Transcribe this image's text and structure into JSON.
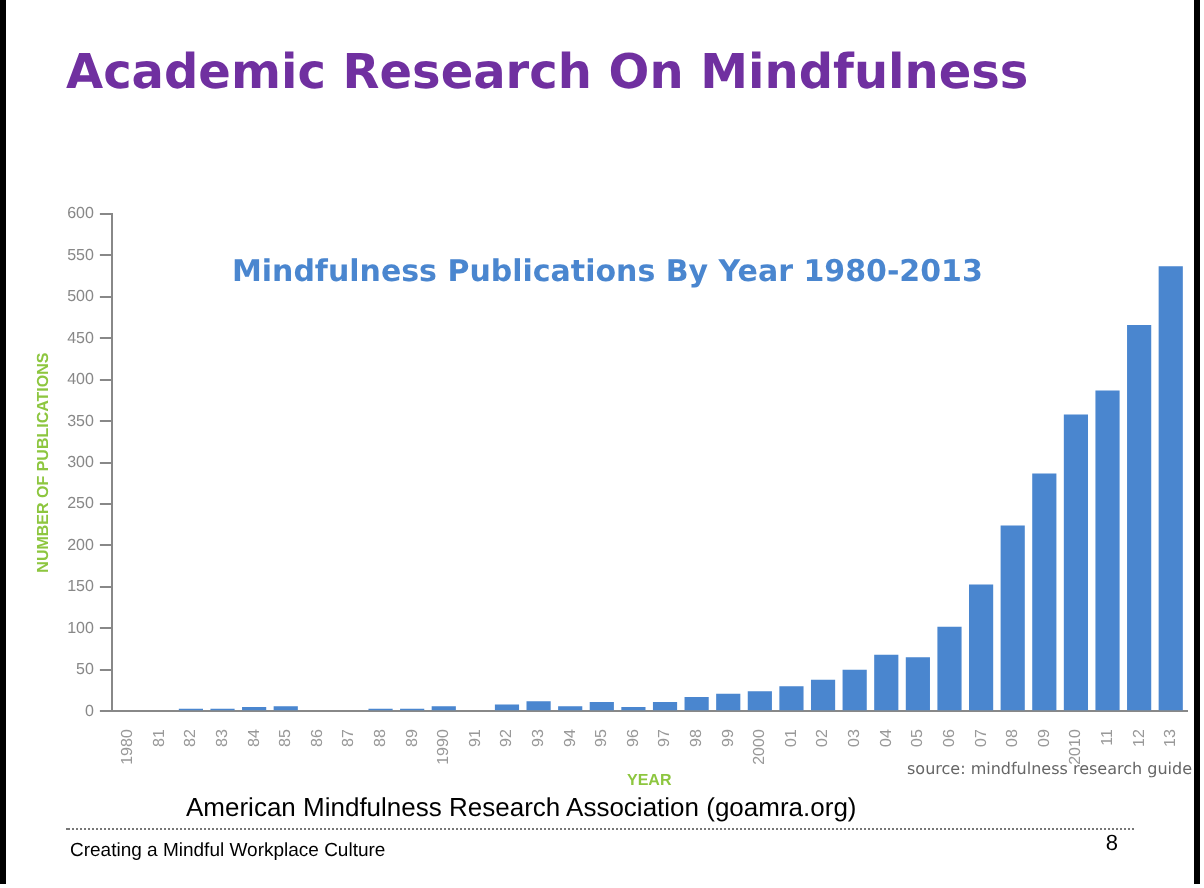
{
  "chart_data": {
    "type": "bar",
    "title": "Academic Research On Mindfulness",
    "subtitle": "Mindfulness Publications By Year 1980-2013",
    "xlabel": "YEAR",
    "ylabel": "NUMBER OF PUBLICATIONS",
    "categories": [
      "1980",
      "81",
      "82",
      "83",
      "84",
      "85",
      "86",
      "87",
      "88",
      "89",
      "1990",
      "91",
      "92",
      "93",
      "94",
      "95",
      "96",
      "97",
      "98",
      "99",
      "2000",
      "01",
      "02",
      "03",
      "04",
      "05",
      "06",
      "07",
      "08",
      "09",
      "2010",
      "11",
      "12",
      "13"
    ],
    "values": [
      0,
      null,
      3,
      3,
      5,
      6,
      null,
      null,
      3,
      3,
      6,
      null,
      8,
      12,
      6,
      11,
      5,
      11,
      17,
      21,
      24,
      30,
      38,
      50,
      68,
      65,
      102,
      153,
      224,
      287,
      358,
      387,
      466,
      537
    ],
    "color": "#4a86cf",
    "ylim": [
      0,
      600
    ],
    "yticks": [
      0,
      50,
      100,
      150,
      200,
      250,
      300,
      350,
      400,
      450,
      500,
      550,
      600
    ],
    "grid": false,
    "legend": false,
    "annotations": [
      "source: mindfulness research guide",
      "American Mindfulness Research Association (goamra.org)",
      "Creating a Mindful Workplace Culture",
      "8"
    ]
  }
}
